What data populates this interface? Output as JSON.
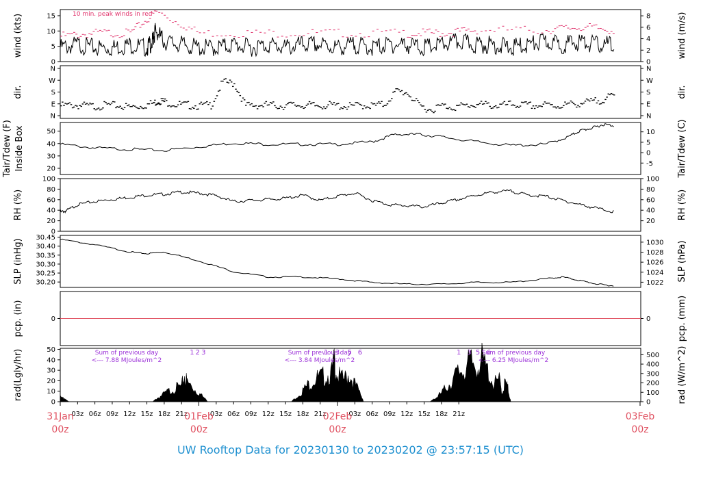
{
  "footer_title": "UW Rooftop Data for 20230130  to  20230202 @ 23:57:15  (UTC)",
  "colors": {
    "trace": "#000000",
    "peak": "#e0306a",
    "date_label": "#e05060",
    "radiation_text": "#9b30d8",
    "footer": "#1e90d0",
    "zero_line": "#e05060"
  },
  "chart_data": [
    {
      "type": "line",
      "id": "wind",
      "ylabel_left": "wind (kts)",
      "ylabel_right": "wind (m/s)",
      "ylim": [
        0,
        17
      ],
      "yticks_left": [
        0,
        5,
        10,
        15
      ],
      "yticks_right": [
        0,
        2,
        4,
        6,
        8
      ],
      "annotation": "10 min. peak winds in red",
      "series": [
        {
          "x": [
            0,
            3,
            6,
            9,
            12,
            15,
            16,
            16.5,
            18,
            21,
            24,
            27,
            30,
            33,
            36,
            39,
            42,
            45,
            48,
            51,
            54,
            57,
            60,
            63,
            66,
            69,
            72,
            75,
            78,
            81,
            84,
            87,
            90,
            93,
            96
          ],
          "values": [
            6,
            7,
            6,
            6,
            7,
            6,
            8,
            12,
            8,
            7,
            6,
            6,
            7,
            6,
            7,
            6,
            7,
            7,
            6,
            7,
            6,
            7,
            7,
            6,
            7,
            8,
            7,
            7,
            6,
            7,
            8,
            7,
            8,
            7,
            7
          ]
        },
        {
          "name": "10 min. peak winds",
          "x": [
            0,
            6,
            12,
            16.5,
            24,
            36,
            48,
            60,
            66,
            72,
            84,
            90,
            96
          ],
          "values": [
            9,
            10,
            10,
            17,
            10,
            10,
            10,
            10,
            10,
            11,
            11,
            12,
            11
          ]
        }
      ]
    },
    {
      "type": "scatter",
      "id": "dir",
      "ylabel_left": "dir.",
      "ylabel_right": "dir.",
      "yticks_left": [
        "N",
        "W",
        "S",
        "E",
        "N"
      ],
      "yticks_right": [
        "N",
        "W",
        "S",
        "E",
        "N"
      ],
      "ylim": [
        0,
        360
      ],
      "series": [
        {
          "x": [
            0,
            2,
            4,
            6,
            8,
            10,
            12,
            14,
            16,
            17,
            18,
            20,
            22,
            24,
            26,
            28,
            30,
            32,
            34,
            36,
            38,
            40,
            42,
            44,
            46,
            48,
            50,
            52,
            54,
            56,
            58,
            60,
            62,
            64,
            66,
            68,
            70,
            72,
            74,
            76,
            78,
            80,
            82,
            84,
            86,
            88,
            90,
            92,
            94,
            96
          ],
          "values": [
            90,
            95,
            90,
            85,
            95,
            90,
            80,
            90,
            110,
            130,
            120,
            100,
            95,
            90,
            95,
            270,
            260,
            90,
            95,
            95,
            90,
            95,
            95,
            90,
            95,
            90,
            85,
            95,
            90,
            100,
            200,
            190,
            90,
            60,
            90,
            80,
            90,
            100,
            95,
            90,
            100,
            95,
            90,
            95,
            90,
            100,
            110,
            120,
            140,
            170
          ]
        }
      ]
    },
    {
      "type": "line",
      "id": "temperature",
      "ylabel_left": "Tair/Tdew (F) Inside Box",
      "ylabel_right": "Tair/Tdew (C)",
      "ylim": [
        15,
        57
      ],
      "yticks_left": [
        20,
        30,
        40,
        50
      ],
      "yticks_right": [
        -5,
        0,
        5,
        10
      ],
      "series": [
        {
          "x": [
            0,
            6,
            12,
            18,
            24,
            30,
            36,
            42,
            48,
            54,
            58,
            62,
            66,
            72,
            78,
            84,
            88,
            90,
            92,
            94,
            96
          ],
          "values": [
            40,
            37,
            36,
            35,
            38,
            41,
            40,
            40,
            40,
            42,
            48,
            48,
            46,
            42,
            39,
            40,
            46,
            51,
            53,
            56,
            55
          ]
        }
      ]
    },
    {
      "type": "line",
      "id": "rh",
      "ylabel_left": "RH (%)",
      "ylabel_right": "RH (%)",
      "ylim": [
        0,
        100
      ],
      "yticks_left": [
        0,
        20,
        40,
        60,
        80,
        100
      ],
      "yticks_right": [
        20,
        40,
        60,
        80,
        100
      ],
      "series": [
        {
          "x": [
            0,
            1,
            3,
            6,
            9,
            12,
            15,
            18,
            21,
            24,
            27,
            30,
            33,
            36,
            39,
            42,
            45,
            48,
            51,
            54,
            57,
            60,
            63,
            66,
            69,
            72,
            75,
            78,
            81,
            84,
            87,
            90,
            93,
            96
          ],
          "values": [
            38,
            40,
            52,
            58,
            62,
            66,
            70,
            72,
            76,
            74,
            69,
            58,
            60,
            62,
            64,
            70,
            60,
            68,
            74,
            60,
            52,
            50,
            48,
            55,
            62,
            70,
            76,
            78,
            70,
            68,
            60,
            52,
            45,
            38
          ]
        }
      ]
    },
    {
      "type": "line",
      "id": "slp",
      "ylabel_left": "SLP (inHg)",
      "ylabel_right": "SLP (hPa)",
      "ylim": [
        30.17,
        30.46
      ],
      "yticks_left": [
        30.2,
        30.25,
        30.3,
        30.35,
        30.4,
        30.45
      ],
      "yticks_left_labels": [
        "30.20",
        "30.25",
        "30.30",
        "30.35",
        "30.40",
        "30.45"
      ],
      "yticks_right": [
        1022,
        1024,
        1026,
        1028,
        1030
      ],
      "series": [
        {
          "x": [
            0,
            6,
            12,
            15,
            18,
            24,
            30,
            36,
            42,
            48,
            54,
            60,
            66,
            72,
            78,
            84,
            87,
            90,
            93,
            96
          ],
          "values": [
            30.44,
            30.41,
            30.37,
            30.36,
            30.37,
            30.32,
            30.26,
            30.23,
            30.23,
            30.22,
            30.2,
            30.19,
            30.19,
            30.2,
            30.2,
            30.22,
            30.23,
            30.21,
            30.19,
            30.18
          ]
        }
      ]
    },
    {
      "type": "line",
      "id": "precip",
      "ylabel_left": "pcp. (in)",
      "ylabel_right": "pcp. (mm)",
      "ylim": [
        -1,
        1
      ],
      "yticks_left": [
        0
      ],
      "yticks_right": [
        0
      ],
      "series": [
        {
          "x": [
            0,
            96
          ],
          "values": [
            0,
            0
          ]
        }
      ]
    },
    {
      "type": "area",
      "id": "radiation",
      "ylabel_left": "rad(Lgly/hr)",
      "ylabel_right": "rad (W/m^2)",
      "ylim": [
        0,
        51
      ],
      "yticks_left": [
        0,
        10,
        20,
        30,
        40,
        50
      ],
      "yticks_right": [
        0,
        100,
        200,
        300,
        400,
        500
      ],
      "daily_sums": [
        {
          "line1": "Sum of previous day",
          "line2": "<--- 7.88 MJoules/m^2"
        },
        {
          "line1": "Sum of previous day",
          "line2": "<--- 3.84 MJoules/m^2"
        },
        {
          "line1": "Sum of previous day",
          "line2": "<--- 6.25 MJoules/m^2"
        }
      ],
      "hour_markers": [
        {
          "day": 0,
          "labels": [
            "1",
            "2",
            "3"
          ],
          "x": [
            22.8,
            23.8,
            24.8
          ]
        },
        {
          "day": 1,
          "labels": [
            "1",
            "3",
            "5",
            "6"
          ],
          "x": [
            46.0,
            48.0,
            50.1,
            51.9
          ]
        },
        {
          "day": 2,
          "labels": [
            "1",
            "3",
            "5",
            "6"
          ],
          "x": [
            69.0,
            70.8,
            72.3,
            74.2
          ]
        }
      ],
      "series": [
        {
          "x": [
            0,
            0.5,
            1,
            1.5,
            16,
            17,
            18,
            19,
            20,
            21,
            21.5,
            22,
            23,
            24,
            25,
            25.5,
            40,
            41,
            42,
            43,
            44,
            45,
            46,
            47,
            47.5,
            48,
            49,
            50,
            51,
            52,
            52.5,
            64,
            65,
            66,
            67,
            68,
            69,
            70,
            71,
            72,
            73,
            74,
            75,
            76,
            76.5,
            77,
            77.5,
            78
          ],
          "values": [
            5,
            4,
            2,
            0,
            0,
            5,
            9,
            13,
            16,
            17,
            30,
            22,
            16,
            10,
            4,
            0,
            0,
            6,
            13,
            20,
            26,
            28,
            30,
            33,
            48,
            30,
            25,
            32,
            20,
            9,
            0,
            0,
            4,
            10,
            18,
            25,
            35,
            38,
            45,
            42,
            48,
            35,
            20,
            25,
            10,
            22,
            15,
            0
          ]
        }
      ]
    }
  ],
  "x_axis": {
    "range_hours": [
      0,
      96
    ],
    "hour_ticks": [
      {
        "x": 3,
        "label": "03z"
      },
      {
        "x": 6,
        "label": "06z"
      },
      {
        "x": 9,
        "label": "09z"
      },
      {
        "x": 12,
        "label": "12z"
      },
      {
        "x": 15,
        "label": "15z"
      },
      {
        "x": 18,
        "label": "18z"
      },
      {
        "x": 21,
        "label": "21z"
      },
      {
        "x": 27,
        "label": "03z"
      },
      {
        "x": 30,
        "label": "06z"
      },
      {
        "x": 33,
        "label": "09z"
      },
      {
        "x": 36,
        "label": "12z"
      },
      {
        "x": 39,
        "label": "15z"
      },
      {
        "x": 42,
        "label": "18z"
      },
      {
        "x": 45,
        "label": "21z"
      },
      {
        "x": 51,
        "label": "03z"
      },
      {
        "x": 54,
        "label": "06z"
      },
      {
        "x": 57,
        "label": "09z"
      },
      {
        "x": 60,
        "label": "12z"
      },
      {
        "x": 63,
        "label": "15z"
      },
      {
        "x": 66,
        "label": "18z"
      },
      {
        "x": 69,
        "label": "21z"
      }
    ],
    "date_ticks": [
      {
        "x": 0,
        "label": "31Jan",
        "sub": "00z"
      },
      {
        "x": 24,
        "label": "01Feb",
        "sub": "00z"
      },
      {
        "x": 48,
        "label": "02Feb",
        "sub": "00z"
      },
      {
        "x": 72,
        "label": "03Feb",
        "sub": "00z"
      }
    ]
  }
}
